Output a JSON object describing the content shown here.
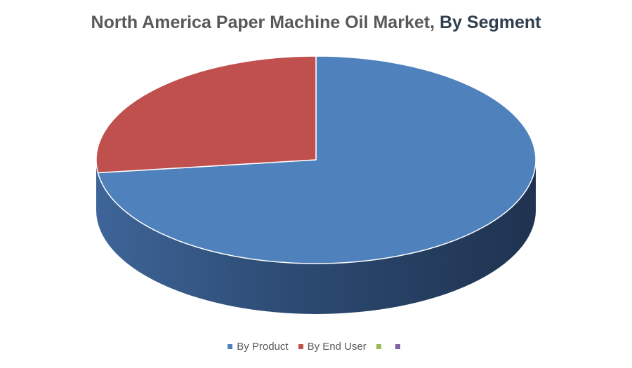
{
  "chart_data": {
    "type": "pie",
    "title_main": "North America Paper Machine Oil Market,",
    "title_sub": "By Segment",
    "series": [
      {
        "name": "By Product",
        "value": 73,
        "color": "#4f81bd"
      },
      {
        "name": "By End User",
        "value": 27,
        "color": "#c0504d"
      },
      {
        "name": "",
        "value": 0,
        "color": "#9bbb59"
      },
      {
        "name": "",
        "value": 0,
        "color": "#8064a2"
      }
    ],
    "style": "3d",
    "legend_position": "bottom"
  }
}
